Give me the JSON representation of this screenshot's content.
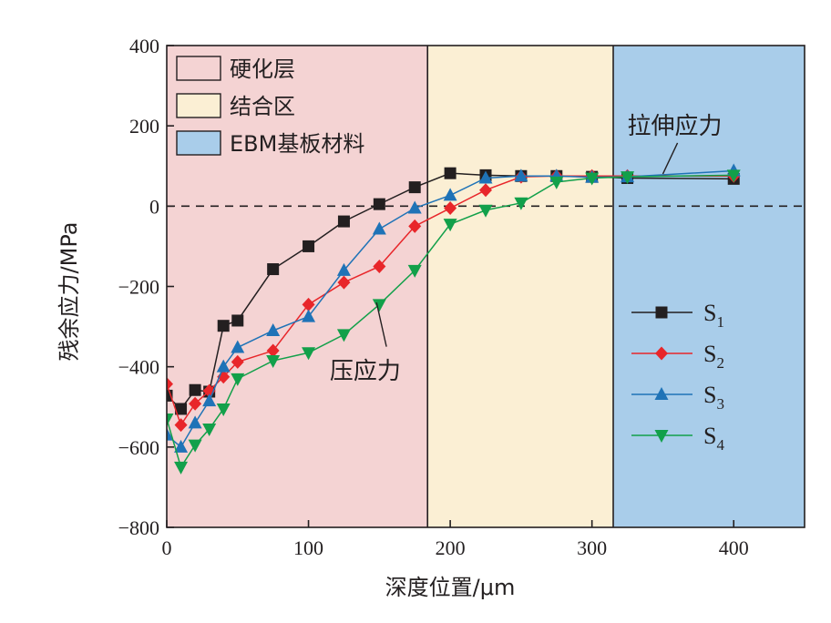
{
  "chart_data": {
    "type": "line",
    "xlabel": "深度位置/μm",
    "ylabel": "残余应力/MPa",
    "xlim": [
      0,
      450
    ],
    "ylim": [
      -800,
      400
    ],
    "xticks": [
      0,
      100,
      200,
      300,
      400
    ],
    "yticks": [
      -800,
      -600,
      -400,
      -200,
      0,
      200,
      400
    ],
    "xtick_labels": [
      "0",
      "100",
      "200",
      "300",
      "400"
    ],
    "ytick_labels": [
      "−800",
      "−600",
      "−400",
      "−200",
      "0",
      "200",
      "400"
    ],
    "zero_line": "dashed",
    "regions": [
      {
        "label": "硬化层",
        "x_start": 0,
        "x_end": 184,
        "color": "#f4d3d3"
      },
      {
        "label": "结合区",
        "x_start": 184,
        "x_end": 315,
        "color": "#fbefd4"
      },
      {
        "label": "EBM基板材料",
        "x_start": 315,
        "x_end": 450,
        "color": "#a9cdea"
      }
    ],
    "region_legend_placement": "top-left",
    "series_legend_placement": "bottom-right",
    "series": [
      {
        "name": "S",
        "sub": "1",
        "marker": "square",
        "color": "#231f20",
        "x": [
          0,
          10,
          20,
          30,
          40,
          50,
          75,
          100,
          125,
          150,
          175,
          200,
          225,
          250,
          275,
          300,
          325,
          400
        ],
        "y": [
          -472,
          -505,
          -458,
          -462,
          -298,
          -285,
          -157,
          -100,
          -38,
          5,
          47,
          82,
          77,
          75,
          75,
          73,
          70,
          68
        ]
      },
      {
        "name": "S",
        "sub": "2",
        "marker": "diamond",
        "color": "#e8262a",
        "x": [
          0,
          10,
          20,
          30,
          40,
          50,
          75,
          100,
          125,
          150,
          175,
          200,
          225,
          250,
          275,
          300,
          325,
          400
        ],
        "y": [
          -443,
          -545,
          -492,
          -460,
          -425,
          -388,
          -360,
          -245,
          -190,
          -150,
          -50,
          -5,
          40,
          73,
          75,
          75,
          75,
          75
        ]
      },
      {
        "name": "S",
        "sub": "3",
        "marker": "triangle-up",
        "color": "#1f73b7",
        "x": [
          0,
          10,
          20,
          30,
          40,
          50,
          75,
          100,
          125,
          150,
          175,
          200,
          225,
          250,
          275,
          300,
          325,
          400
        ],
        "y": [
          -570,
          -600,
          -540,
          -485,
          -400,
          -352,
          -310,
          -275,
          -160,
          -57,
          -5,
          27,
          70,
          75,
          75,
          72,
          73,
          88
        ]
      },
      {
        "name": "S",
        "sub": "4",
        "marker": "triangle-down",
        "color": "#12a04a",
        "x": [
          0,
          10,
          20,
          30,
          40,
          50,
          75,
          100,
          125,
          150,
          175,
          200,
          225,
          250,
          275,
          300,
          325,
          400
        ],
        "y": [
          -530,
          -650,
          -595,
          -555,
          -505,
          -430,
          -385,
          -365,
          -320,
          -245,
          -160,
          -45,
          -10,
          8,
          60,
          70,
          73,
          77
        ]
      }
    ],
    "annotations": [
      {
        "text": "拉伸应力",
        "x": 325,
        "y": 180,
        "arrow_to": [
          350,
          80
        ]
      },
      {
        "text": "压应力",
        "x": 115,
        "y": -430,
        "arrow_from": [
          155,
          -350
        ],
        "arrow_to": [
          148,
          -240
        ]
      }
    ]
  }
}
